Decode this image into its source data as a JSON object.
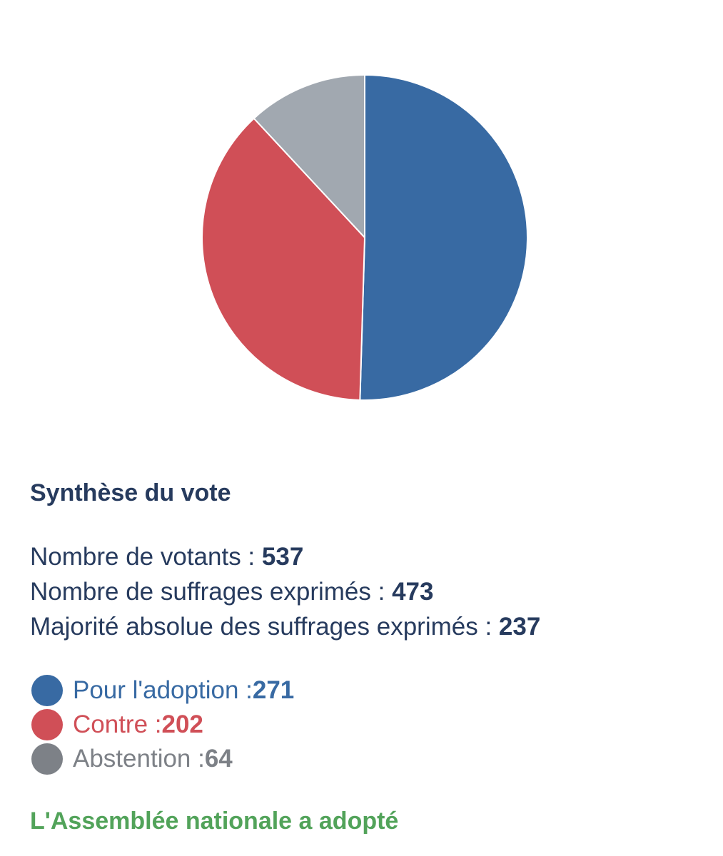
{
  "chart_data": {
    "type": "pie",
    "categories": [
      "Pour l'adoption",
      "Contre",
      "Abstention"
    ],
    "values": [
      271,
      202,
      64
    ],
    "colors": [
      "#386aa3",
      "#d04f57",
      "#a1a8b0"
    ]
  },
  "summary": {
    "title": "Synthèse du vote",
    "votants_label": "Nombre de votants : ",
    "votants_value": "537",
    "exprimes_label": "Nombre de suffrages exprimés : ",
    "exprimes_value": "473",
    "majorite_label": "Majorité absolue des suffrages exprimés : ",
    "majorite_value": "237"
  },
  "legend": {
    "items": [
      {
        "label": "Pour l'adoption : ",
        "value": "271",
        "color": "#386aa3",
        "dot_color": "#386aa3"
      },
      {
        "label": "Contre : ",
        "value": "202",
        "color": "#d04f57",
        "dot_color": "#d04f57"
      },
      {
        "label": "Abstention : ",
        "value": "64",
        "color": "#7d8187",
        "dot_color": "#7d8187"
      }
    ]
  },
  "result": {
    "text": "L'Assemblée nationale a adopté",
    "color": "#52a35a"
  }
}
